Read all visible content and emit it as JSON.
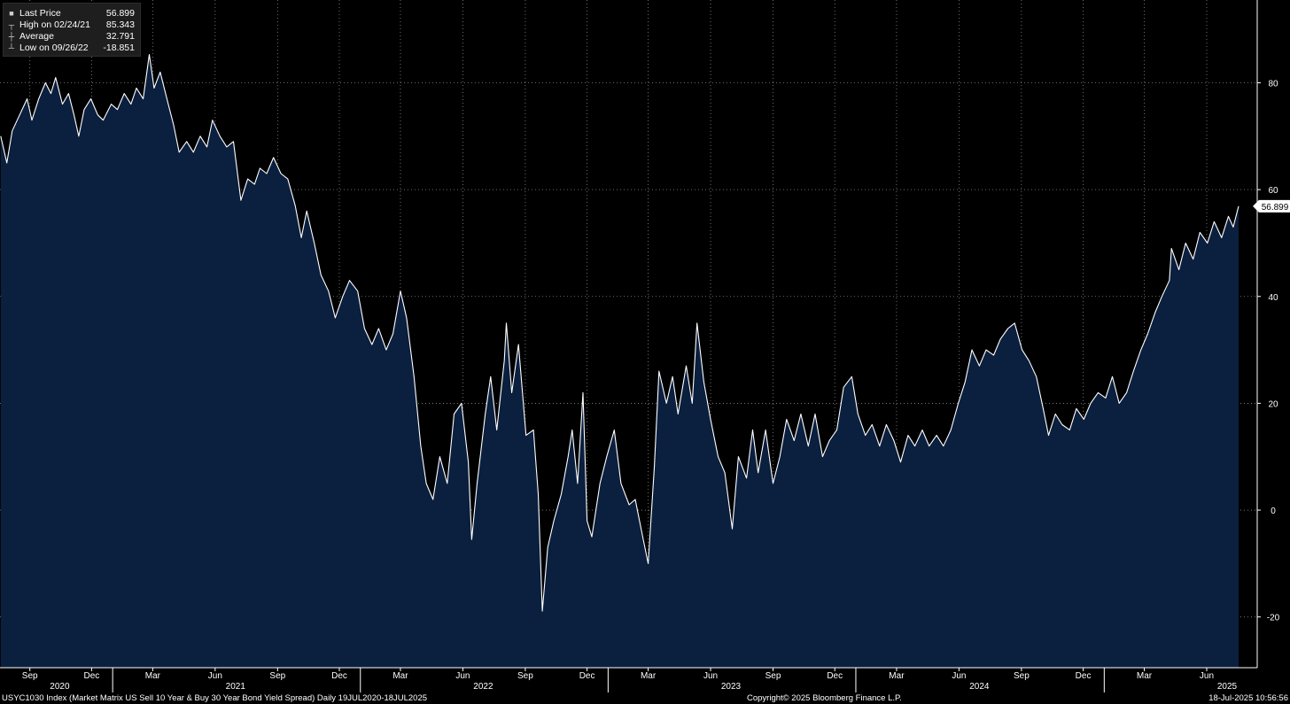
{
  "legend": {
    "items": [
      {
        "icon": "last-price-icon",
        "label": "Last Price",
        "value": "56.899"
      },
      {
        "icon": "high-icon",
        "label": "High on 02/24/21",
        "value": "85.343"
      },
      {
        "icon": "average-icon",
        "label": "Average",
        "value": "32.791"
      },
      {
        "icon": "low-icon",
        "label": "Low on 09/26/22",
        "value": "-18.851"
      }
    ]
  },
  "last_value_tag": "56.899",
  "footer": {
    "description": "USYC1030 Index (Market Matrix US Sell 10 Year & Buy 30 Year Bond Yield Spread)  Daily 19JUL2020-18JUL2025",
    "copyright": "Copyright© 2025 Bloomberg Finance L.P.",
    "timestamp": "18-Jul-2025 10:56:56"
  },
  "colors": {
    "background": "#000000",
    "area_fill": "#0b1f3f",
    "line": "#ffffff",
    "grid": "#8a8a8a"
  },
  "chart_data": {
    "type": "area",
    "title": "",
    "xlabel": "",
    "ylabel": "",
    "x_range": [
      "2020-07-19",
      "2025-07-18"
    ],
    "ylim": [
      -29.5,
      95.5
    ],
    "y_ticks": [
      -20,
      0,
      20,
      40,
      60,
      80
    ],
    "grid": true,
    "legend_position": "top-left",
    "axis_side": "right",
    "month_ticks": [
      {
        "date": "2020-09-01",
        "label": "Sep"
      },
      {
        "date": "2020-12-01",
        "label": "Dec"
      },
      {
        "date": "2021-03-01",
        "label": "Mar"
      },
      {
        "date": "2021-06-01",
        "label": "Jun"
      },
      {
        "date": "2021-09-01",
        "label": "Sep"
      },
      {
        "date": "2021-12-01",
        "label": "Dec"
      },
      {
        "date": "2022-03-01",
        "label": "Mar"
      },
      {
        "date": "2022-06-01",
        "label": "Jun"
      },
      {
        "date": "2022-09-01",
        "label": "Sep"
      },
      {
        "date": "2022-12-01",
        "label": "Dec"
      },
      {
        "date": "2023-03-01",
        "label": "Mar"
      },
      {
        "date": "2023-06-01",
        "label": "Jun"
      },
      {
        "date": "2023-09-01",
        "label": "Sep"
      },
      {
        "date": "2023-12-01",
        "label": "Dec"
      },
      {
        "date": "2024-03-01",
        "label": "Mar"
      },
      {
        "date": "2024-06-01",
        "label": "Jun"
      },
      {
        "date": "2024-09-01",
        "label": "Sep"
      },
      {
        "date": "2024-12-01",
        "label": "Dec"
      },
      {
        "date": "2025-03-01",
        "label": "Mar"
      },
      {
        "date": "2025-06-01",
        "label": "Jun"
      }
    ],
    "year_labels": [
      {
        "date": "2020-10-15",
        "label": "2020"
      },
      {
        "date": "2021-07-01",
        "label": "2021"
      },
      {
        "date": "2022-07-01",
        "label": "2022"
      },
      {
        "date": "2023-07-01",
        "label": "2023"
      },
      {
        "date": "2024-07-01",
        "label": "2024"
      },
      {
        "date": "2025-07-01",
        "label": "2025"
      }
    ],
    "year_boundaries": [
      "2021-01-01",
      "2022-01-01",
      "2023-01-01",
      "2024-01-01",
      "2025-01-01"
    ],
    "series": [
      {
        "name": "Last Price",
        "points": [
          [
            "2020-07-20",
            70
          ],
          [
            "2020-07-29",
            65
          ],
          [
            "2020-08-06",
            71
          ],
          [
            "2020-08-17",
            74
          ],
          [
            "2020-08-28",
            77
          ],
          [
            "2020-09-04",
            73
          ],
          [
            "2020-09-14",
            77
          ],
          [
            "2020-09-24",
            80
          ],
          [
            "2020-10-02",
            78
          ],
          [
            "2020-10-09",
            81
          ],
          [
            "2020-10-19",
            76
          ],
          [
            "2020-10-28",
            78
          ],
          [
            "2020-11-05",
            74
          ],
          [
            "2020-11-12",
            70
          ],
          [
            "2020-11-20",
            75
          ],
          [
            "2020-11-30",
            77
          ],
          [
            "2020-12-10",
            74
          ],
          [
            "2020-12-18",
            73
          ],
          [
            "2020-12-30",
            76
          ],
          [
            "2021-01-08",
            75
          ],
          [
            "2021-01-18",
            78
          ],
          [
            "2021-01-28",
            76
          ],
          [
            "2021-02-05",
            79
          ],
          [
            "2021-02-15",
            77
          ],
          [
            "2021-02-24",
            85.3
          ],
          [
            "2021-03-03",
            79
          ],
          [
            "2021-03-12",
            82
          ],
          [
            "2021-03-22",
            77
          ],
          [
            "2021-04-01",
            72
          ],
          [
            "2021-04-09",
            67
          ],
          [
            "2021-04-20",
            69
          ],
          [
            "2021-04-30",
            67
          ],
          [
            "2021-05-10",
            70
          ],
          [
            "2021-05-20",
            68
          ],
          [
            "2021-05-28",
            73
          ],
          [
            "2021-06-08",
            70
          ],
          [
            "2021-06-18",
            68
          ],
          [
            "2021-06-28",
            69
          ],
          [
            "2021-07-09",
            58
          ],
          [
            "2021-07-19",
            62
          ],
          [
            "2021-07-29",
            61
          ],
          [
            "2021-08-06",
            64
          ],
          [
            "2021-08-16",
            63
          ],
          [
            "2021-08-26",
            66
          ],
          [
            "2021-09-06",
            63
          ],
          [
            "2021-09-16",
            62
          ],
          [
            "2021-09-27",
            57
          ],
          [
            "2021-10-06",
            51
          ],
          [
            "2021-10-14",
            56
          ],
          [
            "2021-10-25",
            50
          ],
          [
            "2021-11-04",
            44
          ],
          [
            "2021-11-15",
            41
          ],
          [
            "2021-11-25",
            36
          ],
          [
            "2021-12-06",
            40
          ],
          [
            "2021-12-16",
            43
          ],
          [
            "2021-12-28",
            41
          ],
          [
            "2022-01-07",
            34
          ],
          [
            "2022-01-18",
            31
          ],
          [
            "2022-01-28",
            34
          ],
          [
            "2022-02-08",
            30
          ],
          [
            "2022-02-18",
            33
          ],
          [
            "2022-03-01",
            41
          ],
          [
            "2022-03-10",
            36
          ],
          [
            "2022-03-21",
            25
          ],
          [
            "2022-03-31",
            12
          ],
          [
            "2022-04-08",
            5
          ],
          [
            "2022-04-18",
            2
          ],
          [
            "2022-04-28",
            10
          ],
          [
            "2022-05-09",
            5
          ],
          [
            "2022-05-19",
            18
          ],
          [
            "2022-05-30",
            20
          ],
          [
            "2022-06-09",
            9
          ],
          [
            "2022-06-14",
            -5.5
          ],
          [
            "2022-06-22",
            5
          ],
          [
            "2022-07-04",
            18
          ],
          [
            "2022-07-12",
            25
          ],
          [
            "2022-07-21",
            15
          ],
          [
            "2022-08-01",
            28
          ],
          [
            "2022-08-04",
            35
          ],
          [
            "2022-08-12",
            22
          ],
          [
            "2022-08-22",
            31
          ],
          [
            "2022-09-02",
            14
          ],
          [
            "2022-09-13",
            15
          ],
          [
            "2022-09-20",
            3
          ],
          [
            "2022-09-26",
            -18.9
          ],
          [
            "2022-10-04",
            -7
          ],
          [
            "2022-10-13",
            -2
          ],
          [
            "2022-10-24",
            3
          ],
          [
            "2022-11-03",
            10
          ],
          [
            "2022-11-09",
            15
          ],
          [
            "2022-11-17",
            5
          ],
          [
            "2022-11-25",
            22
          ],
          [
            "2022-12-01",
            -2
          ],
          [
            "2022-12-08",
            -5
          ],
          [
            "2022-12-20",
            5
          ],
          [
            "2022-12-30",
            10
          ],
          [
            "2023-01-10",
            15
          ],
          [
            "2023-01-20",
            5
          ],
          [
            "2023-02-01",
            1
          ],
          [
            "2023-02-10",
            2
          ],
          [
            "2023-02-21",
            -5
          ],
          [
            "2023-03-01",
            -10
          ],
          [
            "2023-03-10",
            8
          ],
          [
            "2023-03-17",
            26
          ],
          [
            "2023-03-28",
            20
          ],
          [
            "2023-04-06",
            25
          ],
          [
            "2023-04-14",
            18
          ],
          [
            "2023-04-26",
            27
          ],
          [
            "2023-05-05",
            20
          ],
          [
            "2023-05-12",
            35
          ],
          [
            "2023-05-22",
            24
          ],
          [
            "2023-06-01",
            17
          ],
          [
            "2023-06-12",
            10
          ],
          [
            "2023-06-22",
            7
          ],
          [
            "2023-07-03",
            -3.5
          ],
          [
            "2023-07-12",
            10
          ],
          [
            "2023-07-24",
            6
          ],
          [
            "2023-08-02",
            15
          ],
          [
            "2023-08-10",
            7
          ],
          [
            "2023-08-21",
            15
          ],
          [
            "2023-09-01",
            5
          ],
          [
            "2023-09-11",
            10
          ],
          [
            "2023-09-21",
            17
          ],
          [
            "2023-10-02",
            13
          ],
          [
            "2023-10-12",
            18
          ],
          [
            "2023-10-23",
            12
          ],
          [
            "2023-11-02",
            18
          ],
          [
            "2023-11-13",
            10
          ],
          [
            "2023-11-23",
            13
          ],
          [
            "2023-12-04",
            15
          ],
          [
            "2023-12-14",
            23
          ],
          [
            "2023-12-26",
            25
          ],
          [
            "2024-01-04",
            18
          ],
          [
            "2024-01-15",
            14
          ],
          [
            "2024-01-25",
            16
          ],
          [
            "2024-02-05",
            12
          ],
          [
            "2024-02-15",
            16
          ],
          [
            "2024-02-26",
            13
          ],
          [
            "2024-03-07",
            9
          ],
          [
            "2024-03-18",
            14
          ],
          [
            "2024-03-28",
            12
          ],
          [
            "2024-04-08",
            15
          ],
          [
            "2024-04-18",
            12
          ],
          [
            "2024-04-29",
            14
          ],
          [
            "2024-05-09",
            12
          ],
          [
            "2024-05-20",
            15
          ],
          [
            "2024-05-31",
            20
          ],
          [
            "2024-06-10",
            24
          ],
          [
            "2024-06-20",
            30
          ],
          [
            "2024-07-01",
            27
          ],
          [
            "2024-07-11",
            30
          ],
          [
            "2024-07-22",
            29
          ],
          [
            "2024-08-01",
            32
          ],
          [
            "2024-08-12",
            34
          ],
          [
            "2024-08-22",
            35
          ],
          [
            "2024-09-02",
            30
          ],
          [
            "2024-09-12",
            28
          ],
          [
            "2024-09-23",
            25
          ],
          [
            "2024-10-03",
            19
          ],
          [
            "2024-10-11",
            14
          ],
          [
            "2024-10-21",
            18
          ],
          [
            "2024-10-31",
            16
          ],
          [
            "2024-11-11",
            15
          ],
          [
            "2024-11-21",
            19
          ],
          [
            "2024-12-02",
            17
          ],
          [
            "2024-12-12",
            20
          ],
          [
            "2024-12-23",
            22
          ],
          [
            "2025-01-03",
            21
          ],
          [
            "2025-01-13",
            25
          ],
          [
            "2025-01-23",
            20
          ],
          [
            "2025-02-03",
            22
          ],
          [
            "2025-02-13",
            26
          ],
          [
            "2025-02-24",
            30
          ],
          [
            "2025-03-06",
            33
          ],
          [
            "2025-03-17",
            37
          ],
          [
            "2025-03-27",
            40
          ],
          [
            "2025-04-07",
            43
          ],
          [
            "2025-04-10",
            49
          ],
          [
            "2025-04-21",
            45
          ],
          [
            "2025-05-01",
            50
          ],
          [
            "2025-05-12",
            47
          ],
          [
            "2025-05-22",
            52
          ],
          [
            "2025-06-02",
            50
          ],
          [
            "2025-06-12",
            54
          ],
          [
            "2025-06-23",
            51
          ],
          [
            "2025-07-03",
            55
          ],
          [
            "2025-07-10",
            53
          ],
          [
            "2025-07-18",
            56.899
          ]
        ]
      }
    ]
  }
}
